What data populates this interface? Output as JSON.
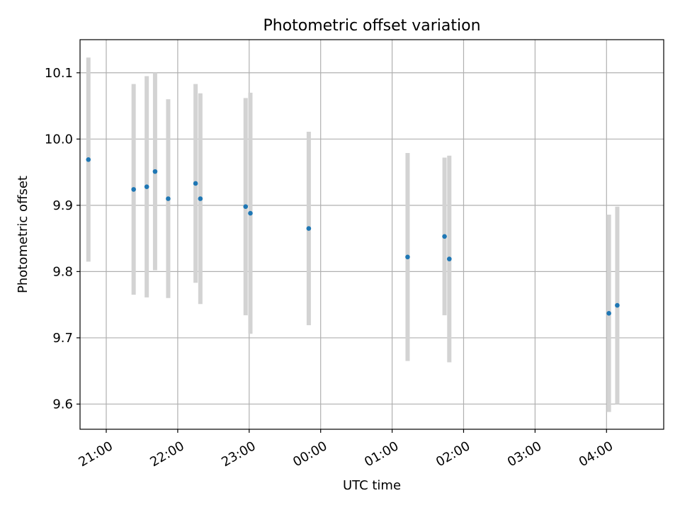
{
  "chart_data": {
    "type": "scatter",
    "title": "Photometric offset variation",
    "xlabel": "UTC time",
    "ylabel": "Photometric offset",
    "x_tick_labels": [
      "21:00",
      "22:00",
      "23:00",
      "00:00",
      "01:00",
      "02:00",
      "03:00",
      "04:00"
    ],
    "y_tick_labels": [
      "9.6",
      "9.7",
      "9.8",
      "9.9",
      "10.0",
      "10.1"
    ],
    "xlim": [
      "20:38",
      "04:48"
    ],
    "ylim": [
      9.562,
      10.15
    ],
    "grid": true,
    "colors": {
      "point": "#1f77b4",
      "errorbar": "#d3d3d3",
      "grid": "#b0b0b0"
    },
    "series": [
      {
        "points": [
          {
            "x": "20:45",
            "y": 9.969,
            "err": 0.154
          },
          {
            "x": "21:23",
            "y": 9.924,
            "err": 0.159
          },
          {
            "x": "21:34",
            "y": 9.928,
            "err": 0.167
          },
          {
            "x": "21:41",
            "y": 9.951,
            "err": 0.149
          },
          {
            "x": "21:52",
            "y": 9.91,
            "err": 0.15
          },
          {
            "x": "22:15",
            "y": 9.933,
            "err": 0.15
          },
          {
            "x": "22:19",
            "y": 9.91,
            "err": 0.159
          },
          {
            "x": "22:57",
            "y": 9.898,
            "err": 0.164
          },
          {
            "x": "23:01",
            "y": 9.888,
            "err": 0.182
          },
          {
            "x": "23:50",
            "y": 9.865,
            "err": 0.146
          },
          {
            "x": "01:13",
            "y": 9.822,
            "err": 0.157
          },
          {
            "x": "01:44",
            "y": 9.853,
            "err": 0.119
          },
          {
            "x": "01:48",
            "y": 9.819,
            "err": 0.156
          },
          {
            "x": "04:02",
            "y": 9.737,
            "err": 0.149
          },
          {
            "x": "04:09",
            "y": 9.749,
            "err": 0.149
          }
        ]
      }
    ]
  }
}
